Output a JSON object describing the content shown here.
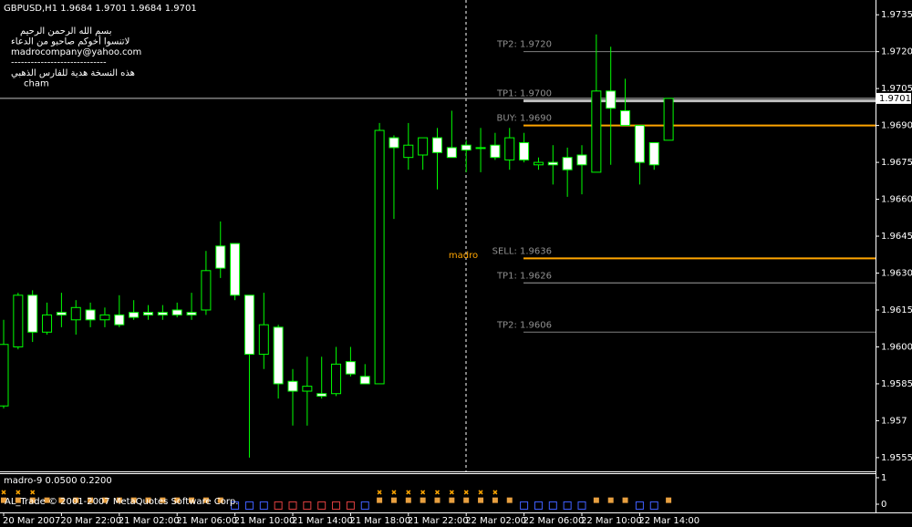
{
  "chart_data": {
    "type": "candlestick",
    "title": "GBPUSD,H1  1.9684 1.9701 1.9684 1.9701",
    "comments": [
      "بسم الله الرحمن الرحيم",
      "لاتنسوا أخوكم صاحبو من الدعاء",
      "madrocompany@yahoo.com",
      "-----------------------------",
      "هذه النسخة هدية للفارس الذهبي",
      "cham"
    ],
    "annotation": "madro",
    "copyright": "AL_Trade © 2001-2007 MetaQuotes Software Corp.",
    "categories": [
      "20 Mar 2007",
      null,
      null,
      null,
      "20 Mar 22:00",
      null,
      null,
      null,
      "21 Mar 02:00",
      null,
      null,
      null,
      "21 Mar 06:00",
      null,
      null,
      null,
      "21 Mar 10:00",
      null,
      null,
      null,
      "21 Mar 14:00",
      null,
      null,
      null,
      "21 Mar 18:00",
      null,
      null,
      null,
      "21 Mar 22:00",
      null,
      null,
      null,
      "22 Mar 02:00",
      null,
      null,
      null,
      "22 Mar 06:00",
      null,
      null,
      null,
      "22 Mar 10:00",
      null,
      null,
      null,
      "22 Mar 14:00",
      null,
      null
    ],
    "open": [
      1.9576,
      1.96,
      1.9621,
      1.9606,
      1.9614,
      1.9611,
      1.9615,
      1.9611,
      1.9613,
      1.9614,
      1.9614,
      1.9614,
      1.9615,
      1.9614,
      1.9615,
      1.9641,
      1.9642,
      1.9621,
      1.9597,
      1.9608,
      1.9586,
      1.9582,
      1.9581,
      1.9581,
      1.9594,
      1.9588,
      1.9585,
      1.9685,
      1.9677,
      1.9678,
      1.9685,
      1.9681,
      1.9682,
      1.9681,
      1.9682,
      1.9676,
      1.9683,
      1.9674,
      1.9675,
      1.9677,
      1.9678,
      1.9671,
      1.9704,
      1.9696,
      1.969,
      1.9683,
      1.9684
    ],
    "high": [
      1.9611,
      1.9622,
      1.9623,
      1.9618,
      1.9622,
      1.9619,
      1.9618,
      1.9616,
      1.9621,
      1.9619,
      1.9617,
      1.9617,
      1.9618,
      1.9622,
      1.9639,
      1.9651,
      1.9642,
      1.9621,
      1.9622,
      1.9609,
      1.9591,
      1.9596,
      1.9596,
      1.96,
      1.96,
      1.9593,
      1.9691,
      1.9686,
      1.9691,
      1.9685,
      1.9689,
      1.9696,
      1.9684,
      1.9689,
      1.9687,
      1.9689,
      1.9687,
      1.9677,
      1.9682,
      1.9681,
      1.9682,
      1.9727,
      1.9722,
      1.9709,
      1.969,
      1.9683,
      1.9701
    ],
    "low": [
      1.9575,
      1.9599,
      1.9602,
      1.9605,
      1.9608,
      1.9605,
      1.9608,
      1.9608,
      1.9608,
      1.9611,
      1.9611,
      1.9611,
      1.9612,
      1.9611,
      1.9613,
      1.9628,
      1.9619,
      1.9555,
      1.9591,
      1.9579,
      1.9568,
      1.9568,
      1.9579,
      1.958,
      1.9588,
      1.9585,
      1.9585,
      1.9652,
      1.9672,
      1.9672,
      1.9664,
      1.9677,
      1.9671,
      1.9671,
      1.9676,
      1.9672,
      1.9675,
      1.9672,
      1.9666,
      1.9661,
      1.9662,
      1.9671,
      1.9674,
      1.969,
      1.9666,
      1.9672,
      1.9684
    ],
    "close": [
      1.9601,
      1.9621,
      1.9606,
      1.9613,
      1.9613,
      1.9616,
      1.9611,
      1.9613,
      1.9609,
      1.9612,
      1.9613,
      1.9613,
      1.9613,
      1.9613,
      1.9631,
      1.9632,
      1.9621,
      1.9597,
      1.9609,
      1.9585,
      1.9582,
      1.9584,
      1.958,
      1.9593,
      1.9589,
      1.9585,
      1.9688,
      1.9681,
      1.9682,
      1.9685,
      1.9679,
      1.9677,
      1.968,
      1.9681,
      1.9677,
      1.9685,
      1.9676,
      1.9675,
      1.9674,
      1.9672,
      1.9674,
      1.9704,
      1.9697,
      1.969,
      1.9675,
      1.9674,
      1.9701
    ],
    "up_color": "#000000",
    "down_color": "#ffffff",
    "wick_color": "#00ff00",
    "ylim": [
      1.95494,
      1.9741
    ],
    "yticks": [
      1.9735,
      {
        "value": 1.972,
        "label": "1.9720"
      },
      1.9705,
      {
        "value": 1.969,
        "label": "1.9690"
      },
      1.9675,
      {
        "value": 1.966,
        "label": "1.9660"
      },
      1.9645,
      {
        "value": 1.963,
        "label": "1.9630"
      },
      1.9615,
      {
        "value": 1.96,
        "label": "1.9600"
      },
      1.9585,
      1.957,
      1.9555
    ],
    "current_price": 1.9701,
    "levels": [
      {
        "value": 1.972,
        "label": "TP2: 1.9720",
        "color": "#808080"
      },
      {
        "value": 1.97,
        "label": "TP1: 1.9700",
        "color": "#c0c0c0"
      },
      {
        "value": 1.969,
        "label": "BUY: 1.9690",
        "color": "#ffa500"
      },
      {
        "value": 1.9636,
        "label": "SELL: 1.9636",
        "color": "#ffa500"
      },
      {
        "value": 1.9626,
        "label": "TP1: 1.9626",
        "color": "#a0a0a0"
      },
      {
        "value": 1.9606,
        "label": "TP2: 1.9606",
        "color": "#808080"
      }
    ],
    "indicator": {
      "title": "madro-9 0.0500 0.2200",
      "ylim": [
        -0.31,
        1.17
      ],
      "yticks": [
        0,
        1
      ],
      "series": [
        {
          "marker": "x",
          "color": "#ffa500",
          "values": [
            0.45,
            0.45,
            0.45,
            null,
            null,
            null,
            null,
            null,
            null,
            null,
            null,
            null,
            null,
            null,
            null,
            null,
            null,
            null,
            null,
            null,
            null,
            null,
            null,
            null,
            null,
            null,
            0.45,
            0.45,
            0.45,
            0.45,
            0.45,
            0.45,
            0.45,
            0.45,
            0.45,
            null,
            null,
            null,
            null,
            null,
            null,
            null,
            null,
            null,
            null,
            null,
            null
          ]
        },
        {
          "marker": "square",
          "color": "#e8a040",
          "values": [
            0.15,
            0.15,
            0.15,
            0.15,
            0.15,
            0.15,
            0.15,
            0.15,
            0.15,
            0.15,
            0.15,
            0.15,
            0.15,
            0.15,
            0.15,
            0.15,
            null,
            null,
            null,
            null,
            null,
            null,
            null,
            null,
            null,
            null,
            0.15,
            0.15,
            0.15,
            0.15,
            0.15,
            0.15,
            0.15,
            0.15,
            0.15,
            0.15,
            null,
            null,
            null,
            null,
            null,
            0.15,
            0.15,
            0.15,
            null,
            null,
            0.15
          ]
        },
        {
          "marker": "box",
          "color": "#4060ff",
          "values": [
            null,
            null,
            null,
            null,
            null,
            null,
            null,
            null,
            null,
            null,
            null,
            null,
            null,
            null,
            null,
            null,
            -0.05,
            -0.05,
            -0.05,
            null,
            null,
            null,
            null,
            null,
            null,
            -0.05,
            null,
            null,
            null,
            null,
            null,
            null,
            null,
            null,
            null,
            null,
            -0.05,
            -0.05,
            -0.05,
            -0.05,
            -0.05,
            null,
            null,
            null,
            -0.05,
            -0.05,
            null
          ]
        },
        {
          "marker": "box",
          "color": "#e04040",
          "values": [
            null,
            null,
            null,
            null,
            null,
            null,
            null,
            null,
            null,
            null,
            null,
            null,
            null,
            null,
            null,
            null,
            null,
            null,
            null,
            -0.05,
            -0.05,
            -0.05,
            -0.05,
            -0.05,
            -0.05,
            null,
            null,
            null,
            null,
            null,
            null,
            null,
            null,
            null,
            null,
            null,
            null,
            null,
            null,
            null,
            null,
            null,
            null,
            null,
            null,
            null,
            null
          ]
        }
      ]
    }
  }
}
